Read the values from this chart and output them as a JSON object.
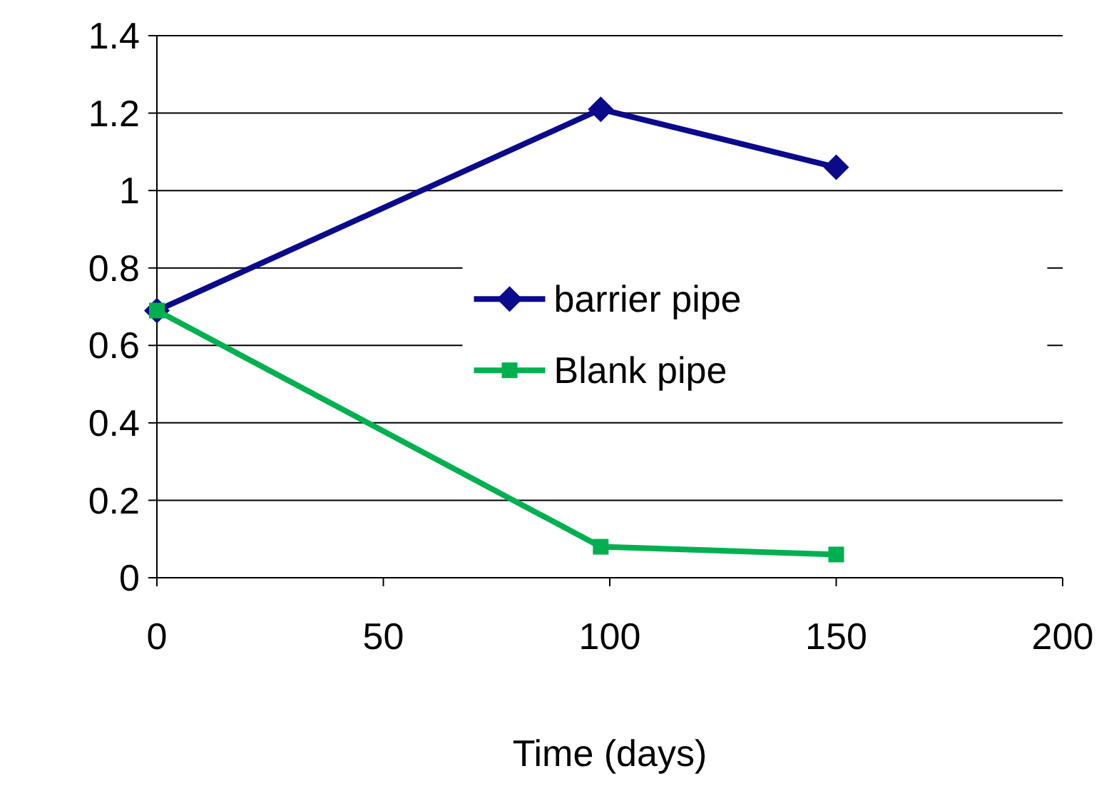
{
  "chart_data": {
    "type": "line",
    "xlabel": "Time (days)",
    "xlim": [
      0,
      200
    ],
    "xticks": [
      0,
      50,
      100,
      150,
      200
    ],
    "ylim": [
      0,
      1.4
    ],
    "yticks": [
      0,
      {
        "value": 0.2,
        "label": "0.2"
      },
      {
        "value": 0.4,
        "label": "0.4"
      },
      {
        "value": 0.6,
        "label": "0.6"
      },
      {
        "value": 0.8,
        "label": "0.8"
      },
      1,
      {
        "value": 1.2,
        "label": "1.2"
      },
      {
        "value": 1.4,
        "label": "1.4"
      }
    ],
    "grid": "y",
    "legend": "right",
    "series": [
      {
        "name": "barrier pipe",
        "color": "#0a0a8a",
        "marker": "diamond",
        "x": [
          0,
          98,
          150
        ],
        "values": [
          0.69,
          1.21,
          1.06
        ]
      },
      {
        "name": "Blank pipe",
        "color": "#00b050",
        "marker": "square",
        "x": [
          0,
          98,
          150
        ],
        "values": [
          0.69,
          0.08,
          0.06
        ]
      }
    ]
  }
}
